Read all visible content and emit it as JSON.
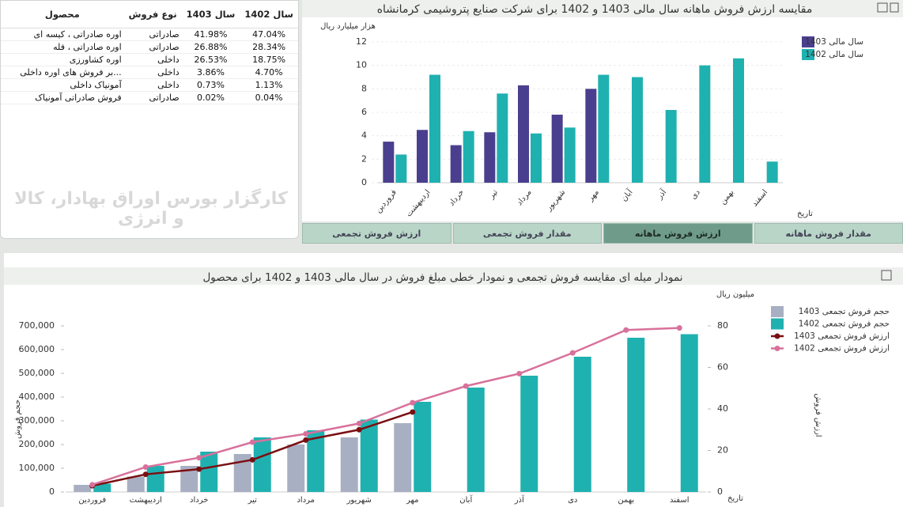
{
  "table": {
    "headers": [
      "محصول",
      "نوع فروش",
      "سال 1403",
      "سال 1402"
    ],
    "rows": [
      [
        "اوره صادراتی ، کیسه ای",
        "صادراتی",
        "41.98%",
        "47.04%"
      ],
      [
        "اوره صادراتی ، فله",
        "صادراتی",
        "26.88%",
        "28.34%"
      ],
      [
        "اوره کشاورزی",
        "داخلی",
        "26.53%",
        "18.75%"
      ],
      [
        "...بر فروش های اوره داخلی",
        "داخلی",
        "3.86%",
        "4.70%"
      ],
      [
        "آمونیاک داخلی",
        "داخلی",
        "0.73%",
        "1.13%"
      ],
      [
        "فروش صادراتی آمونیاک",
        "صادراتی",
        "0.02%",
        "0.04%"
      ]
    ]
  },
  "watermark": "کارگزار بورس اوراق بهادار، کالا و انرژی",
  "tabs": [
    "ارزش فروش تجمعی",
    "مقدار فروش تجمعی",
    "ارزش فروش ماهانه",
    "مقدار فروش ماهانه"
  ],
  "active_tab": 2,
  "chart_data": [
    {
      "type": "bar",
      "title": "مقایسه ارزش فروش ماهانه سال مالی 1403 و 1402 برای شرکت صنایع پتروشیمی کرمانشاه",
      "y_label": "هزار میلیارد ریال",
      "x_label": "تاریخ",
      "categories": [
        "فروردین",
        "اردیبهشت",
        "خرداد",
        "تیر",
        "مرداد",
        "شهریور",
        "مهر",
        "آبان",
        "آذر",
        "دی",
        "بهمن",
        "اسفند"
      ],
      "series": [
        {
          "name": "سال مالی 1403",
          "color": "#4a3f8e",
          "values": [
            3.5,
            4.5,
            3.2,
            4.3,
            8.3,
            5.8,
            8.0,
            null,
            null,
            null,
            null,
            null
          ]
        },
        {
          "name": "سال مالی 1402",
          "color": "#1fb1b0",
          "values": [
            2.4,
            9.2,
            4.4,
            7.6,
            4.2,
            4.7,
            9.2,
            9.0,
            6.2,
            10.0,
            10.6,
            1.8
          ]
        }
      ],
      "ylim": [
        0,
        12
      ],
      "yticks": [
        0,
        2,
        4,
        6,
        8,
        10,
        12
      ],
      "grid": true,
      "legend": "right"
    },
    {
      "type": "bar-line",
      "title": "نمودار میله ای مقایسه فروش تجمعی و نمودار خطی مبلغ فروش در سال مالی 1403 و 1402 برای محصول",
      "y_label": "حجم فروش",
      "y2_label": "ارزش فروش",
      "y2_unit": "میلیون ریال",
      "x_label": "تاریخ",
      "categories": [
        "فروردین",
        "اردیبهشت",
        "خرداد",
        "تیر",
        "مرداد",
        "شهریور",
        "مهر",
        "آبان",
        "آذر",
        "دی",
        "بهمن",
        "اسفند"
      ],
      "series": [
        {
          "name": "حجم فروش تجمعی 1403",
          "mark": "bar",
          "color": "#a9afc3",
          "values": [
            30000,
            65000,
            110000,
            160000,
            200000,
            230000,
            290000,
            null,
            null,
            null,
            null,
            null
          ]
        },
        {
          "name": "حجم فروش تجمعی 1402",
          "mark": "bar",
          "color": "#1fb1b0",
          "values": [
            35000,
            110000,
            170000,
            230000,
            260000,
            305000,
            380000,
            440000,
            490000,
            570000,
            650000,
            665000
          ]
        },
        {
          "name": "ارزش فروش تجمعی 1403",
          "mark": "line",
          "axis": "y2",
          "color": "#7a0f12",
          "values": [
            3,
            8.5,
            11,
            15.5,
            25,
            30,
            38.5,
            null,
            null,
            null,
            null,
            null
          ]
        },
        {
          "name": "ارزش فروش تجمعی 1402",
          "mark": "line",
          "axis": "y2",
          "color": "#d8719b",
          "values": [
            3.5,
            12,
            16.5,
            24,
            28,
            33,
            43,
            51,
            57,
            67,
            78,
            79
          ]
        }
      ],
      "ylim": [
        0,
        700000
      ],
      "yticks": [
        0,
        {
          "value": 100000,
          "label": "100,000"
        },
        {
          "value": 200000,
          "label": "200,000"
        },
        {
          "value": 300000,
          "label": "300,000"
        },
        {
          "value": 400000,
          "label": "400,000"
        },
        {
          "value": 500000,
          "label": "500,000"
        },
        {
          "value": 600000,
          "label": "600,000"
        },
        {
          "value": 700000,
          "label": "700,000"
        }
      ],
      "y2lim": [
        0,
        80
      ],
      "y2ticks": [
        0,
        20,
        40,
        60,
        80
      ],
      "grid": false,
      "legend": "right"
    }
  ]
}
